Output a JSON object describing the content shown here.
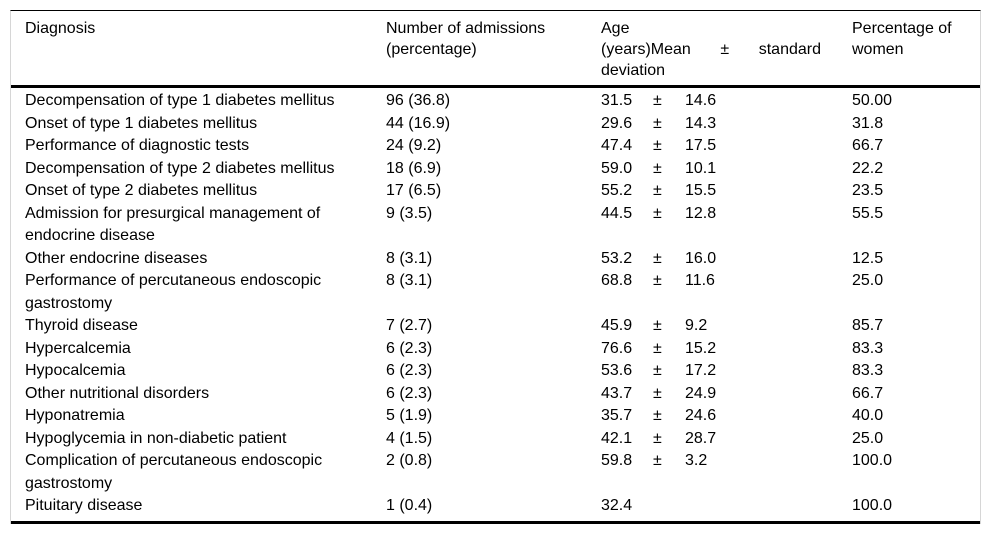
{
  "table": {
    "header": {
      "diagnosis": "Diagnosis",
      "admissions_line1": "Number of admissions",
      "admissions_line2": "(percentage)",
      "age_line1": "Age",
      "age_line2_part1": "(years)Mean",
      "age_line2_part2": "±",
      "age_line2_part3": "standard",
      "age_line3": "deviation",
      "women_line1": "Percentage of",
      "women_line2": "women"
    },
    "rows": [
      {
        "diagnosis": "Decompensation of type 1 diabetes mellitus",
        "admissions": "96 (36.8)",
        "age_mean": "31.5",
        "plus_minus": "±",
        "age_sd": "14.6",
        "pct_women": "50.00"
      },
      {
        "diagnosis": "Onset of type 1 diabetes mellitus",
        "admissions": "44 (16.9)",
        "age_mean": "29.6",
        "plus_minus": "±",
        "age_sd": "14.3",
        "pct_women": "31.8"
      },
      {
        "diagnosis": "Performance of diagnostic tests",
        "admissions": "24 (9.2)",
        "age_mean": "47.4",
        "plus_minus": "±",
        "age_sd": "17.5",
        "pct_women": "66.7"
      },
      {
        "diagnosis": "Decompensation of type 2 diabetes mellitus",
        "admissions": "18 (6.9)",
        "age_mean": "59.0",
        "plus_minus": "±",
        "age_sd": "10.1",
        "pct_women": "22.2"
      },
      {
        "diagnosis": "Onset of type 2 diabetes mellitus",
        "admissions": "17 (6.5)",
        "age_mean": "55.2",
        "plus_minus": "±",
        "age_sd": "15.5",
        "pct_women": "23.5"
      },
      {
        "diagnosis": "Admission for presurgical management of endocrine disease",
        "admissions": "9 (3.5)",
        "age_mean": "44.5",
        "plus_minus": "±",
        "age_sd": "12.8",
        "pct_women": "55.5"
      },
      {
        "diagnosis": "Other endocrine diseases",
        "admissions": "8 (3.1)",
        "age_mean": "53.2",
        "plus_minus": "±",
        "age_sd": "16.0",
        "pct_women": "12.5"
      },
      {
        "diagnosis": "Performance of percutaneous endoscopic gastrostomy",
        "admissions": "8 (3.1)",
        "age_mean": "68.8",
        "plus_minus": "±",
        "age_sd": "11.6",
        "pct_women": "25.0"
      },
      {
        "diagnosis": "Thyroid disease",
        "admissions": "7 (2.7)",
        "age_mean": "45.9",
        "plus_minus": "±",
        "age_sd": "9.2",
        "pct_women": "85.7"
      },
      {
        "diagnosis": "Hypercalcemia",
        "admissions": "6 (2.3)",
        "age_mean": "76.6",
        "plus_minus": "±",
        "age_sd": "15.2",
        "pct_women": "83.3"
      },
      {
        "diagnosis": "Hypocalcemia",
        "admissions": "6 (2.3)",
        "age_mean": "53.6",
        "plus_minus": "±",
        "age_sd": "17.2",
        "pct_women": "83.3"
      },
      {
        "diagnosis": "Other nutritional disorders",
        "admissions": "6 (2.3)",
        "age_mean": "43.7",
        "plus_minus": "±",
        "age_sd": "24.9",
        "pct_women": "66.7"
      },
      {
        "diagnosis": "Hyponatremia",
        "admissions": "5 (1.9)",
        "age_mean": "35.7",
        "plus_minus": "±",
        "age_sd": "24.6",
        "pct_women": "40.0"
      },
      {
        "diagnosis": "Hypoglycemia in non-diabetic patient",
        "admissions": "4 (1.5)",
        "age_mean": "42.1",
        "plus_minus": "±",
        "age_sd": "28.7",
        "pct_women": "25.0"
      },
      {
        "diagnosis": "Complication of percutaneous endoscopic gastrostomy",
        "admissions": "2 (0.8)",
        "age_mean": "59.8",
        "plus_minus": "±",
        "age_sd": "3.2",
        "pct_women": "100.0"
      },
      {
        "diagnosis": "Pituitary disease",
        "admissions": "1 (0.4)",
        "age_mean": "32.4",
        "plus_minus": "",
        "age_sd": "",
        "pct_women": "100.0"
      }
    ]
  }
}
